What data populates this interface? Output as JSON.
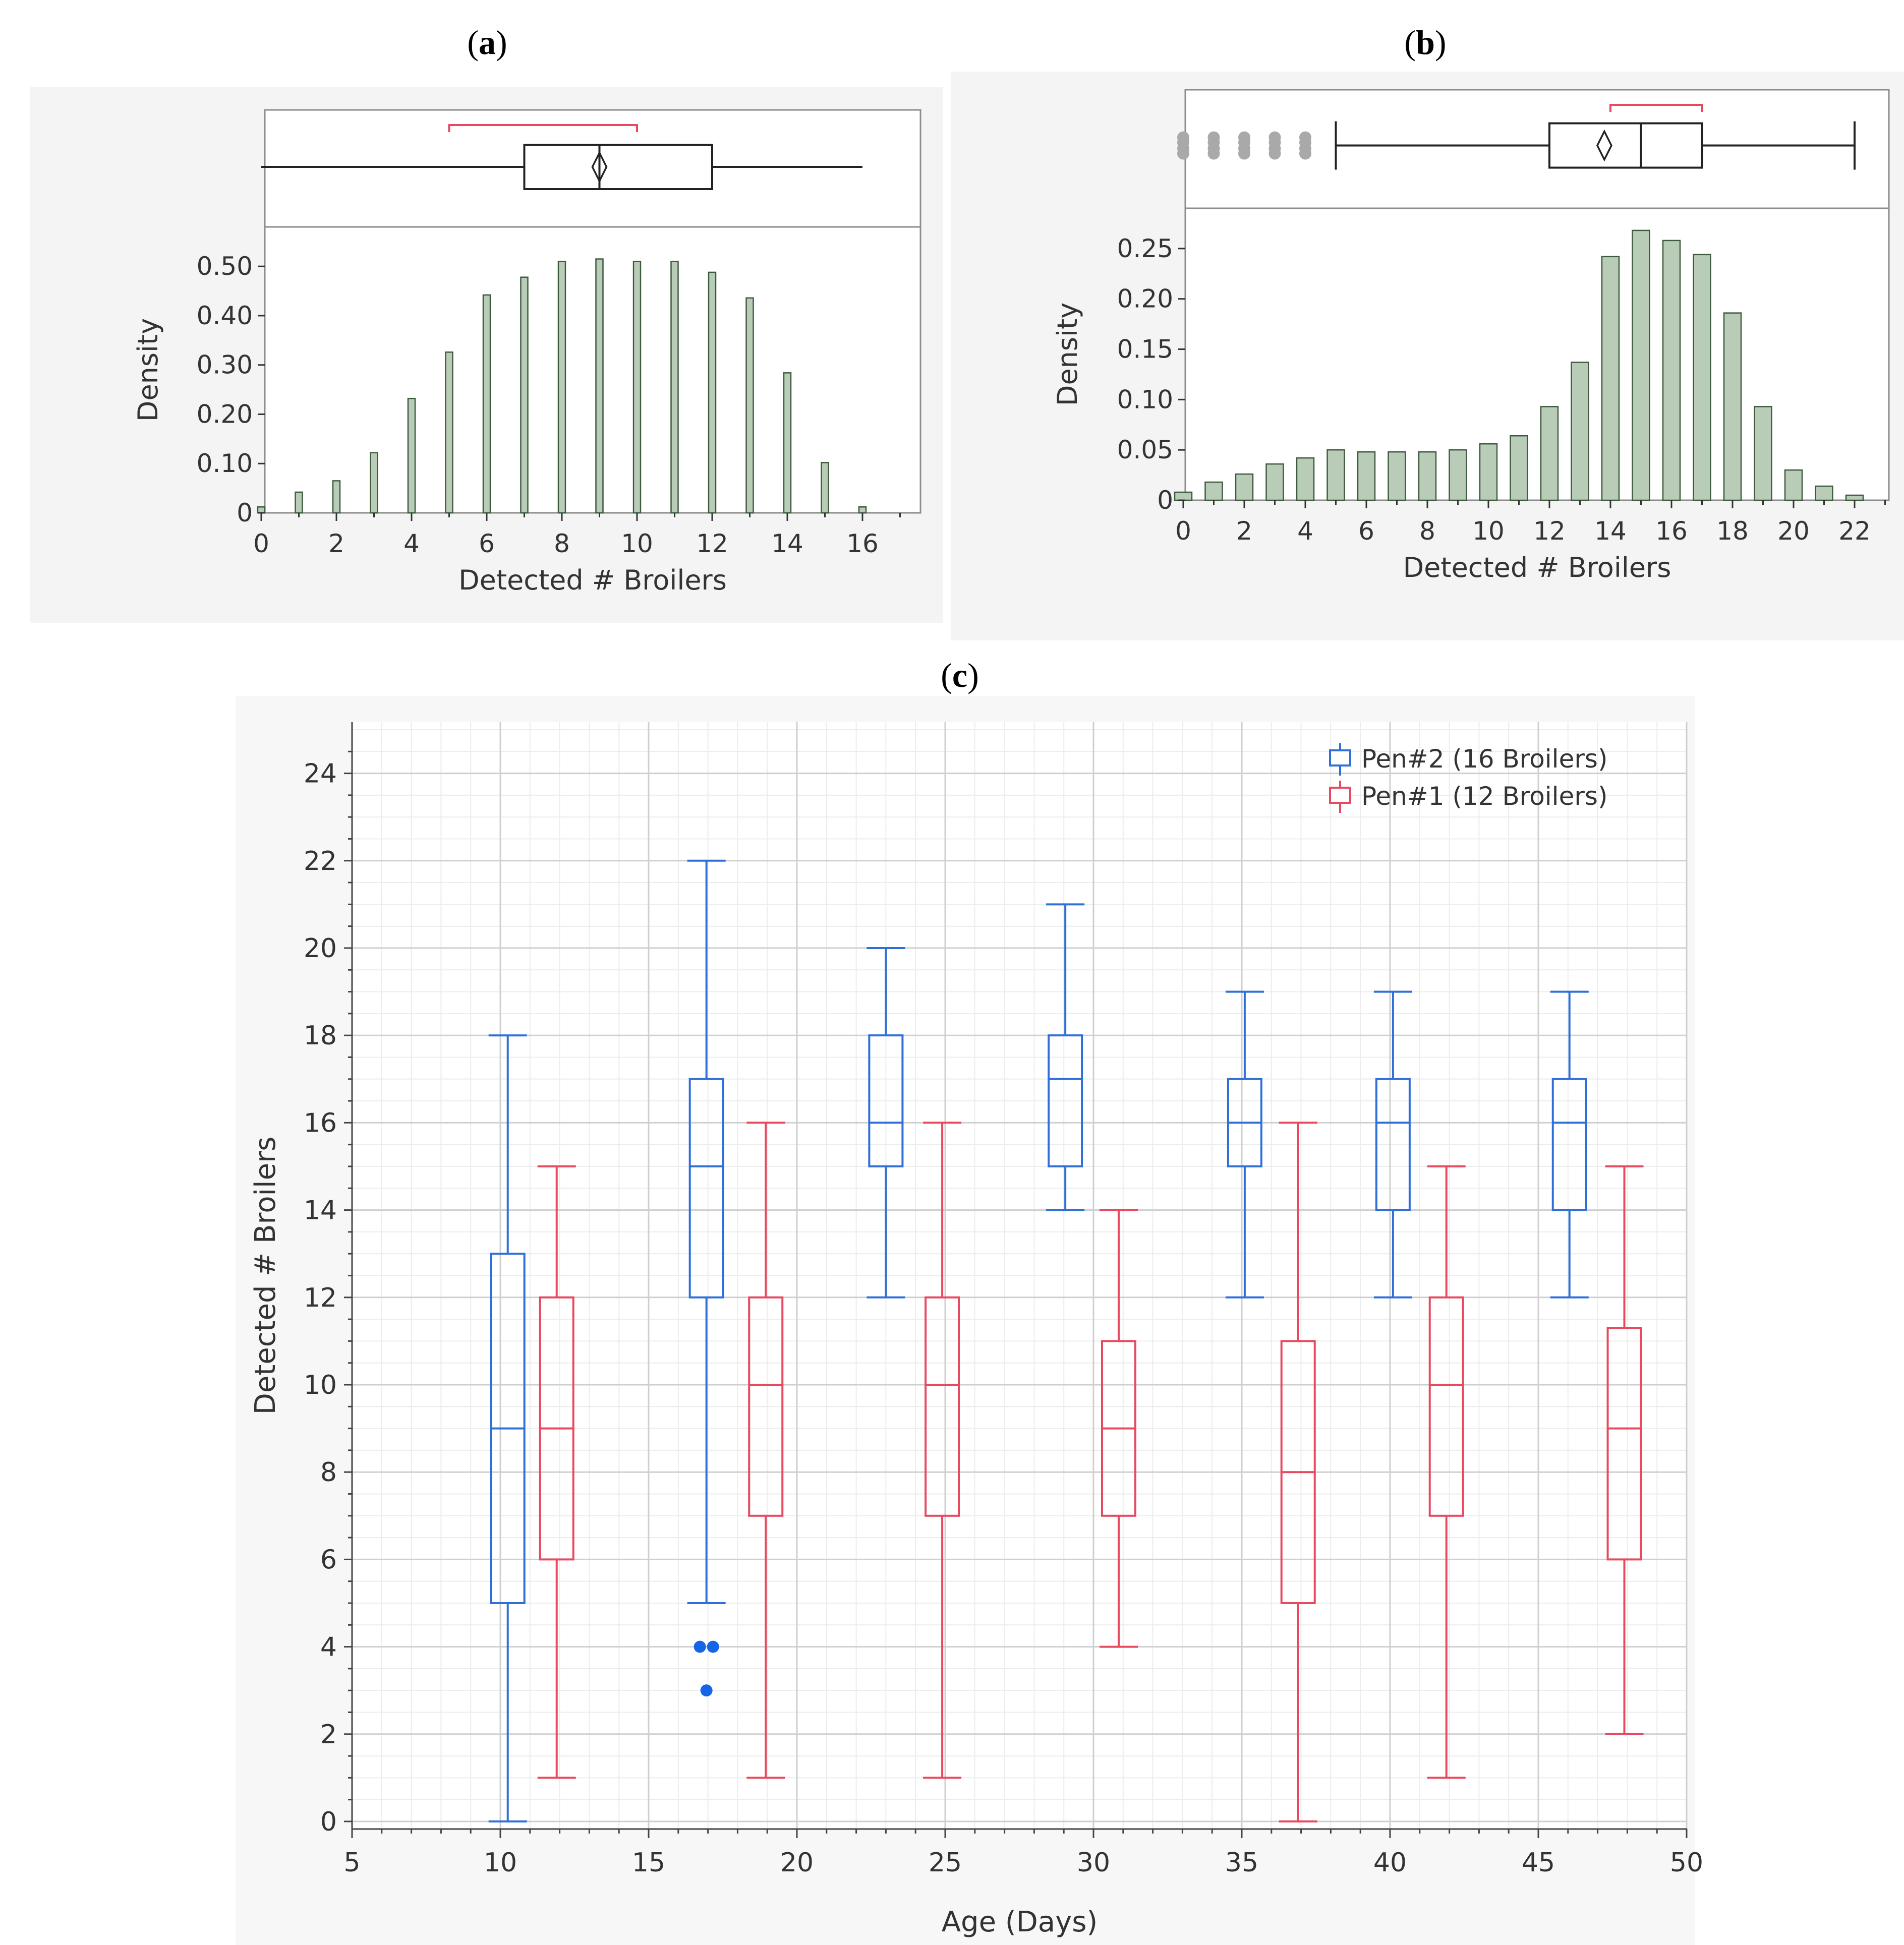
{
  "panels": {
    "a": {
      "label": "a"
    },
    "b": {
      "label": "b"
    },
    "c": {
      "label": "c"
    }
  },
  "colors": {
    "pen2": "#2e6fd8",
    "pen1": "#e8495f",
    "bar_fill": "#b8ccb8",
    "bar_stroke": "#3d5a3d",
    "outlier_gray": "#a9a9a9",
    "outlier_blue": "#1565e6",
    "shortest_half": "#e8495f"
  },
  "chart_data": [
    {
      "type": "bar",
      "id": "a",
      "title": "",
      "xlabel": "Detected # Broilers",
      "ylabel": "Density",
      "xlim": [
        0,
        17
      ],
      "ylim": [
        0,
        0.58
      ],
      "x_ticks": [
        "0",
        "2",
        "4",
        "6",
        "8",
        "10",
        "12",
        "14",
        "16"
      ],
      "y_ticks": [
        "0",
        "0.10",
        "0.20",
        "0.30",
        "0.40",
        "0.50"
      ],
      "x": [
        0,
        1,
        2,
        3,
        4,
        5,
        6,
        7,
        8,
        9,
        10,
        11,
        12,
        13,
        14,
        15,
        16
      ],
      "values": [
        0.012,
        0.042,
        0.065,
        0.122,
        0.232,
        0.326,
        0.442,
        0.478,
        0.51,
        0.515,
        0.51,
        0.51,
        0.488,
        0.436,
        0.284,
        0.102,
        0.012
      ],
      "boxplot": {
        "min": 0,
        "q1": 7,
        "median": 9,
        "q3": 12,
        "max": 16,
        "mean": 9,
        "shortest_half": [
          5,
          10
        ]
      }
    },
    {
      "type": "bar",
      "id": "b",
      "title": "",
      "xlabel": "Detected # Broilers",
      "ylabel": "Density",
      "xlim": [
        0,
        23
      ],
      "ylim": [
        0,
        0.29
      ],
      "x_ticks": [
        "0",
        "2",
        "4",
        "6",
        "8",
        "10",
        "12",
        "14",
        "16",
        "18",
        "20",
        "22"
      ],
      "y_ticks": [
        "0",
        "0.05",
        "0.10",
        "0.15",
        "0.20",
        "0.25"
      ],
      "x": [
        0,
        1,
        2,
        3,
        4,
        5,
        6,
        7,
        8,
        9,
        10,
        11,
        12,
        13,
        14,
        15,
        16,
        17,
        18,
        19,
        20,
        21,
        22
      ],
      "values": [
        0.008,
        0.018,
        0.026,
        0.036,
        0.042,
        0.05,
        0.048,
        0.048,
        0.048,
        0.05,
        0.056,
        0.064,
        0.093,
        0.137,
        0.242,
        0.268,
        0.258,
        0.244,
        0.186,
        0.093,
        0.03,
        0.014,
        0.005
      ],
      "boxplot": {
        "min": 5,
        "q1": 12,
        "median": 15,
        "q3": 17,
        "max": 22,
        "mean": 13.8,
        "outliers": [
          0,
          1,
          2,
          3,
          4
        ],
        "shortest_half": [
          14,
          17
        ]
      }
    },
    {
      "type": "boxplot",
      "id": "c",
      "title": "",
      "xlabel": "Age (Days)",
      "ylabel": "Detected # Broilers",
      "xlim": [
        5,
        50
      ],
      "ylim": [
        -0.5,
        25
      ],
      "x_ticks": [
        "5",
        "10",
        "15",
        "20",
        "25",
        "30",
        "35",
        "40",
        "45",
        "50"
      ],
      "y_ticks": [
        "0",
        "2",
        "4",
        "6",
        "8",
        "10",
        "12",
        "14",
        "16",
        "18",
        "20",
        "22",
        "24"
      ],
      "legend": [
        "Pen#2 (16 Broilers)",
        "Pen#1 (12 Broilers)"
      ],
      "series": [
        {
          "name": "Pen#2 (16 Broilers)",
          "boxes": [
            {
              "x": 10.25,
              "min": 0,
              "q1": 5,
              "median": 9,
              "q3": 13,
              "max": 18
            },
            {
              "x": 16.95,
              "min": 5,
              "q1": 12,
              "median": 15,
              "q3": 17,
              "max": 22,
              "outliers": [
                4,
                4,
                3
              ]
            },
            {
              "x": 23.0,
              "min": 12,
              "q1": 15,
              "median": 16,
              "q3": 18,
              "max": 20
            },
            {
              "x": 29.05,
              "min": 14,
              "q1": 15,
              "median": 17,
              "q3": 18,
              "max": 21
            },
            {
              "x": 35.1,
              "min": 12,
              "q1": 15,
              "median": 16,
              "q3": 17,
              "max": 19
            },
            {
              "x": 40.1,
              "min": 12,
              "q1": 14,
              "median": 16,
              "q3": 17,
              "max": 19
            },
            {
              "x": 46.05,
              "min": 12,
              "q1": 14,
              "median": 16,
              "q3": 17,
              "max": 19
            }
          ]
        },
        {
          "name": "Pen#1 (12 Broilers)",
          "boxes": [
            {
              "x": 11.9,
              "min": 1,
              "q1": 6,
              "median": 9,
              "q3": 12,
              "max": 15
            },
            {
              "x": 18.95,
              "min": 1,
              "q1": 7,
              "median": 10,
              "q3": 12,
              "max": 16
            },
            {
              "x": 24.9,
              "min": 1,
              "q1": 7,
              "median": 10,
              "q3": 12,
              "max": 16
            },
            {
              "x": 30.85,
              "min": 4,
              "q1": 7,
              "median": 9,
              "q3": 11,
              "max": 14
            },
            {
              "x": 36.9,
              "min": 0,
              "q1": 5,
              "median": 8,
              "q3": 11,
              "max": 16
            },
            {
              "x": 41.9,
              "min": 1,
              "q1": 7,
              "median": 10,
              "q3": 12,
              "max": 15
            },
            {
              "x": 47.9,
              "min": 2,
              "q1": 6,
              "median": 9,
              "q3": 11.3,
              "max": 15
            }
          ]
        }
      ]
    }
  ]
}
